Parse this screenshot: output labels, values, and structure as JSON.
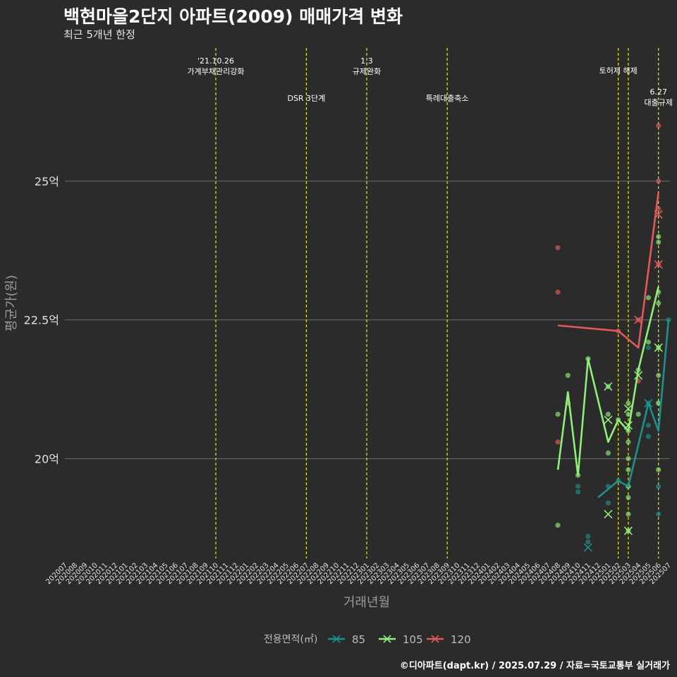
{
  "header": {
    "title": "백현마을2단지 아파트(2009) 매매가격 변화",
    "subtitle": "최근 5개년 한정"
  },
  "footer": {
    "caption": "©디아파트(dapt.kr) / 2025.07.29 / 자료=국토교통부 실거래가"
  },
  "colors": {
    "background": "#2b2b2b",
    "grid": "#6e6e6e",
    "event_line": "#e8e800",
    "85": "#1f8f8c",
    "105": "#90ee7a",
    "120": "#e05a5a"
  },
  "chart_data": {
    "type": "line+scatter",
    "xlabel": "거래년월",
    "ylabel": "평균가(원)",
    "ylim": [
      18.2,
      27.4
    ],
    "yticks": [
      20,
      22.5,
      25
    ],
    "ytick_labels": [
      "20억",
      "22.5억",
      "25억"
    ],
    "categories": [
      "202007",
      "202008",
      "202009",
      "202010",
      "202011",
      "202012",
      "202101",
      "202102",
      "202103",
      "202104",
      "202105",
      "202106",
      "202107",
      "202108",
      "202109",
      "202110",
      "202111",
      "202112",
      "202201",
      "202202",
      "202203",
      "202204",
      "202205",
      "202206",
      "202207",
      "202208",
      "202209",
      "202210",
      "202211",
      "202212",
      "202301",
      "202302",
      "202303",
      "202304",
      "202305",
      "202306",
      "202307",
      "202308",
      "202309",
      "202310",
      "202311",
      "202312",
      "202401",
      "202402",
      "202403",
      "202404",
      "202405",
      "202406",
      "202407",
      "202408",
      "202409",
      "202410",
      "202411",
      "202412",
      "202501",
      "202502",
      "202503",
      "202504",
      "202505",
      "202506",
      "202507"
    ],
    "events": [
      {
        "x": "202110",
        "label": "'21.10.26\n가계부채관리강화",
        "row": 0
      },
      {
        "x": "202207",
        "label": "DSR 3단계",
        "row": 1
      },
      {
        "x": "202301",
        "label": "1.3\n규제완화",
        "row": 0
      },
      {
        "x": "202309",
        "label": "특례대출축소",
        "row": 1
      },
      {
        "x": "202502",
        "label": "토허제 해제",
        "row": 0
      },
      {
        "x": "202503",
        "label": "",
        "row": 0
      },
      {
        "x": "202506",
        "label": "6.27\n대출규제",
        "row": 2
      }
    ],
    "legend": {
      "title": "전용면적(㎡)",
      "entries": [
        "85",
        "105",
        "120"
      ]
    },
    "series": [
      {
        "name": "85",
        "line": [
          [
            "202412",
            19.3
          ],
          [
            "202502",
            19.6
          ],
          [
            "202503",
            19.5
          ],
          [
            "202505",
            21.0
          ],
          [
            "202506",
            20.5
          ],
          [
            "202507",
            22.5
          ]
        ],
        "points": [
          [
            "202410",
            19.5
          ],
          [
            "202410",
            19.4
          ],
          [
            "202411",
            18.6
          ],
          [
            "202411",
            18.5
          ],
          [
            "202501",
            19.2
          ],
          [
            "202501",
            19.5
          ],
          [
            "202502",
            19.6
          ],
          [
            "202503",
            19.5
          ],
          [
            "202505",
            20.6
          ],
          [
            "202505",
            20.4
          ],
          [
            "202505",
            21.0
          ],
          [
            "202505",
            22.0
          ],
          [
            "202506",
            19.5
          ],
          [
            "202506",
            19.0
          ],
          [
            "202506",
            21.0
          ],
          [
            "202507",
            22.5
          ]
        ],
        "cross": [
          [
            "202411",
            18.4
          ],
          [
            "202505",
            21.0
          ]
        ]
      },
      {
        "name": "105",
        "line": [
          [
            "202408",
            19.8
          ],
          [
            "202409",
            21.2
          ],
          [
            "202410",
            19.7
          ],
          [
            "202411",
            21.8
          ],
          [
            "202501",
            20.3
          ],
          [
            "202502",
            20.7
          ],
          [
            "202503",
            20.5
          ],
          [
            "202504",
            21.6
          ],
          [
            "202506",
            23.1
          ]
        ],
        "points": [
          [
            "202408",
            20.8
          ],
          [
            "202408",
            18.8
          ],
          [
            "202409",
            21.5
          ],
          [
            "202409",
            21.0
          ],
          [
            "202410",
            19.7
          ],
          [
            "202411",
            21.8
          ],
          [
            "202501",
            20.8
          ],
          [
            "202501",
            20.1
          ],
          [
            "202501",
            21.3
          ],
          [
            "202502",
            20.7
          ],
          [
            "202503",
            21.0
          ],
          [
            "202503",
            20.8
          ],
          [
            "202503",
            20.5
          ],
          [
            "202503",
            20.3
          ],
          [
            "202503",
            20.0
          ],
          [
            "202503",
            19.8
          ],
          [
            "202503",
            19.5
          ],
          [
            "202503",
            19.3
          ],
          [
            "202503",
            19.0
          ],
          [
            "202503",
            18.7
          ],
          [
            "202504",
            21.6
          ],
          [
            "202504",
            20.8
          ],
          [
            "202505",
            22.9
          ],
          [
            "202505",
            22.1
          ],
          [
            "202506",
            24.0
          ],
          [
            "202506",
            23.9
          ],
          [
            "202506",
            23.0
          ],
          [
            "202506",
            22.8
          ],
          [
            "202506",
            22.0
          ],
          [
            "202506",
            21.5
          ],
          [
            "202506",
            21.0
          ],
          [
            "202506",
            19.8
          ]
        ],
        "cross": [
          [
            "202501",
            21.3
          ],
          [
            "202501",
            20.7
          ],
          [
            "202501",
            19.0
          ],
          [
            "202503",
            20.9
          ],
          [
            "202503",
            20.6
          ],
          [
            "202503",
            18.7
          ],
          [
            "202504",
            21.5
          ],
          [
            "202506",
            22.0
          ]
        ]
      },
      {
        "name": "120",
        "line": [
          [
            "202408",
            22.4
          ],
          [
            "202502",
            22.3
          ],
          [
            "202504",
            22.0
          ],
          [
            "202506",
            24.8
          ]
        ],
        "points": [
          [
            "202408",
            23.8
          ],
          [
            "202408",
            23.0
          ],
          [
            "202408",
            20.3
          ],
          [
            "202502",
            22.3
          ],
          [
            "202504",
            22.5
          ],
          [
            "202504",
            21.4
          ],
          [
            "202506",
            26.0
          ],
          [
            "202506",
            25.0
          ],
          [
            "202506",
            24.5
          ],
          [
            "202506",
            23.5
          ]
        ],
        "cross": [
          [
            "202504",
            22.5
          ],
          [
            "202506",
            24.4
          ],
          [
            "202506",
            23.5
          ]
        ]
      }
    ]
  }
}
